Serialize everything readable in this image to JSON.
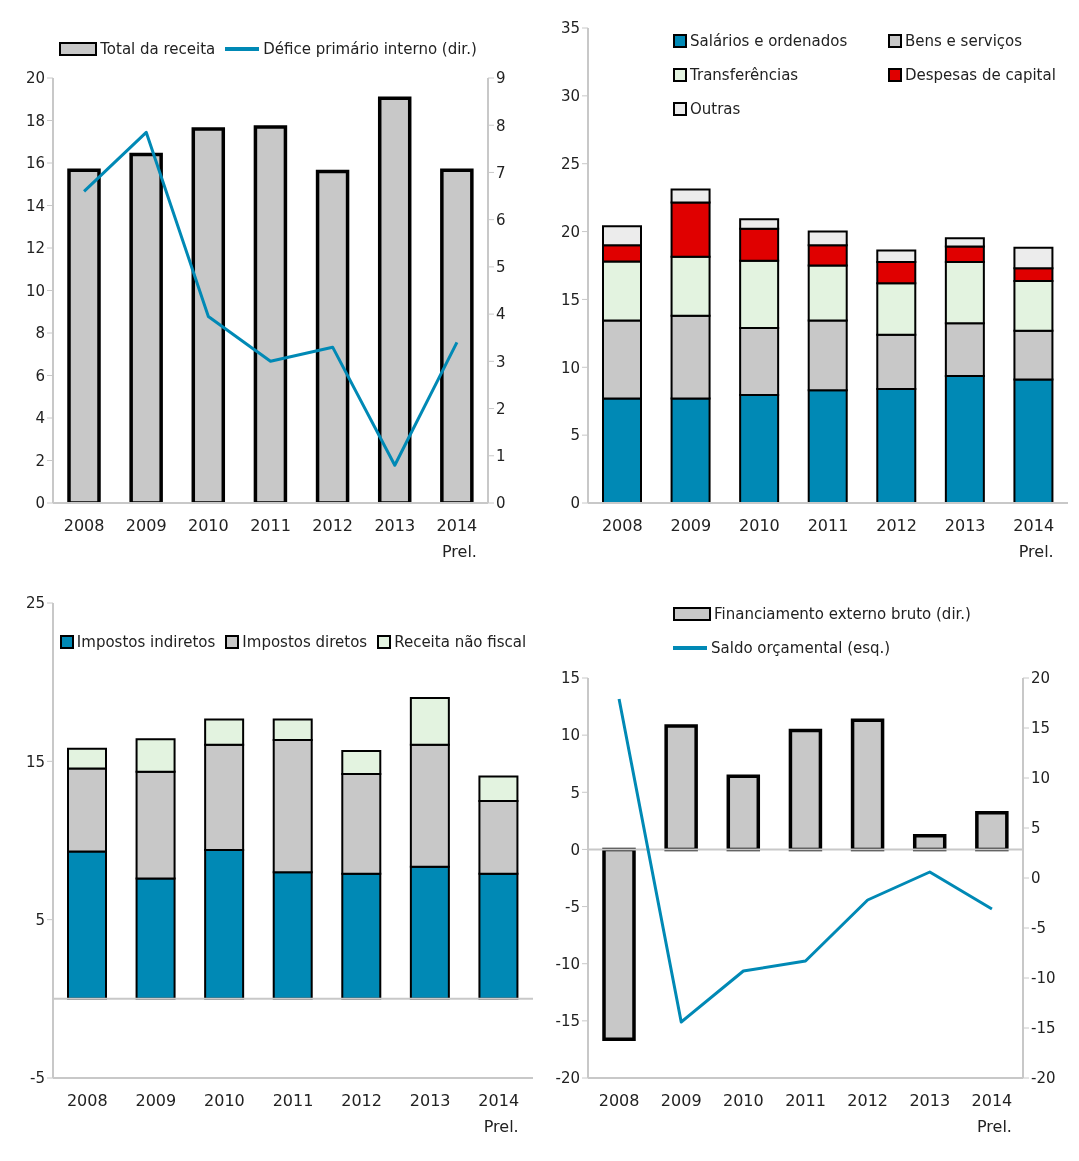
{
  "chart_data": [
    {
      "type": "bar",
      "categories": [
        "2008",
        "2009",
        "2010",
        "2011",
        "2012",
        "2013",
        "2014\nPrel."
      ],
      "series": [
        {
          "name": "Total da receita",
          "color": "#c8c8c8",
          "values": [
            15.66,
            16.4,
            17.6,
            17.7,
            15.6,
            19.05,
            15.66
          ]
        },
        {
          "name": "Défice primário interno (dir.)",
          "type": "line",
          "axis": "y2",
          "color": "#0089b5",
          "values": [
            6.6,
            7.85,
            3.95,
            3.0,
            3.3,
            0.8,
            3.4
          ]
        }
      ],
      "ylim": [
        0,
        20
      ],
      "yticks": [
        0,
        2,
        4,
        6,
        8,
        10,
        12,
        14,
        16,
        18,
        20
      ],
      "y2lim": [
        0,
        9
      ],
      "y2ticks": [
        0,
        1,
        2,
        3,
        4,
        5,
        6,
        7,
        8,
        9
      ],
      "legend": "top",
      "grid": false
    },
    {
      "type": "bar",
      "stacked": true,
      "categories": [
        "2008",
        "2009",
        "2010",
        "2011",
        "2012",
        "2013",
        "2014\nPrel."
      ],
      "series": [
        {
          "name": "Salários e ordenados",
          "color": "#0089b5",
          "values": [
            7.7,
            7.7,
            7.95,
            8.3,
            8.4,
            9.35,
            9.1
          ]
        },
        {
          "name": "Bens e serviços",
          "color": "#c8c8c8",
          "values": [
            5.75,
            6.1,
            4.95,
            5.15,
            4.0,
            3.9,
            3.6
          ]
        },
        {
          "name": "Transferências",
          "color": "#e3f3e0",
          "values": [
            4.35,
            4.35,
            4.95,
            4.05,
            3.8,
            4.5,
            3.65
          ]
        },
        {
          "name": "Despesas de capital",
          "color": "#e00000",
          "values": [
            1.2,
            4.0,
            2.35,
            1.5,
            1.55,
            1.15,
            0.95
          ]
        },
        {
          "name": "Outras",
          "color": "#ececec",
          "values": [
            1.4,
            0.95,
            0.7,
            1.0,
            0.85,
            0.6,
            1.5
          ]
        }
      ],
      "ylim": [
        0,
        35
      ],
      "yticks": [
        0,
        5,
        10,
        15,
        20,
        25,
        30,
        35
      ],
      "legend": "top right",
      "grid": false
    },
    {
      "type": "bar",
      "stacked": true,
      "categories": [
        "2008",
        "2009",
        "2010",
        "2011",
        "2012",
        "2013",
        "2014\nPrel."
      ],
      "series": [
        {
          "name": "Impostos indiretos",
          "color": "#0089b5",
          "values": [
            9.3,
            7.6,
            9.4,
            8.0,
            7.9,
            8.35,
            7.9
          ]
        },
        {
          "name": "Impostos diretos",
          "color": "#c8c8c8",
          "values": [
            5.25,
            6.75,
            6.65,
            8.35,
            6.3,
            7.7,
            4.6
          ]
        },
        {
          "name": "Receita não fiscal",
          "color": "#e3f3e0",
          "values": [
            1.25,
            2.05,
            1.6,
            1.3,
            1.45,
            2.95,
            1.55
          ]
        }
      ],
      "ylim": [
        -5,
        25
      ],
      "yticks": [
        -5,
        5,
        15,
        25
      ],
      "legend": "top",
      "grid": false,
      "ref_lines": [
        {
          "axis": "y",
          "value": 0,
          "color": "#c8c8c8"
        }
      ]
    },
    {
      "type": "bar",
      "categories": [
        "2008",
        "2009",
        "2010",
        "2011",
        "2012",
        "2013",
        "2014\nPrel."
      ],
      "series": [
        {
          "name": "Financiamento externo bruto (dir.)",
          "color": "#c8c8c8",
          "values": [
            -16.6,
            10.8,
            6.4,
            10.4,
            11.3,
            1.2,
            3.2
          ]
        },
        {
          "name": "Saldo orçamental (esq.)",
          "type": "line",
          "axis": "y2",
          "color": "#0089b5",
          "values": [
            17.9,
            -14.4,
            -9.3,
            -8.3,
            -2.2,
            0.6,
            -3.1
          ]
        }
      ],
      "ylim": [
        -20,
        15
      ],
      "yticks": [
        -20,
        -15,
        -10,
        -5,
        0,
        5,
        10,
        15
      ],
      "y2lim": [
        -20,
        20
      ],
      "y2ticks": [
        -20,
        -15,
        -10,
        -5,
        0,
        5,
        10,
        15,
        20
      ],
      "legend": "top",
      "grid": false,
      "ref_lines": [
        {
          "axis": "y",
          "value": 0,
          "color": "#c8c8c8"
        }
      ]
    }
  ]
}
